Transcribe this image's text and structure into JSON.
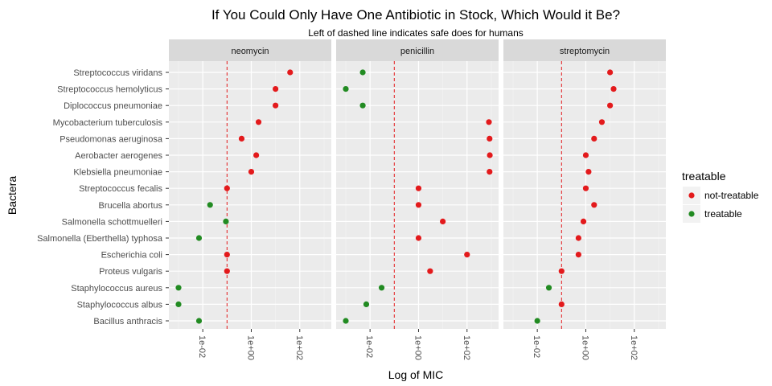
{
  "chart_data": {
    "type": "scatter",
    "title": "If You Could Only Have One Antibiotic in Stock, Which Would it Be?",
    "subtitle": "Left of dashed line indicates safe does for humans",
    "xlabel": "Log of MIC",
    "ylabel": "Bactera",
    "x_scale": "log10",
    "xlim": [
      0.0004,
      2000
    ],
    "x_ticks": [
      0.01,
      1,
      100
    ],
    "x_tick_labels": [
      "1e-02",
      "1e+00",
      "1e+02"
    ],
    "threshold": 0.1,
    "grid": true,
    "legend": {
      "title": "treatable",
      "position": "right",
      "entries": [
        {
          "label": "not-treatable",
          "color": "#e31a1c"
        },
        {
          "label": "treatable",
          "color": "#228b22"
        }
      ]
    },
    "colors": {
      "not-treatable": "#e31a1c",
      "treatable": "#228b22",
      "threshold_line": "#e31a1c"
    },
    "categories": [
      "Streptococcus viridans",
      "Streptococcus hemolyticus",
      "Diplococcus pneumoniae",
      "Mycobacterium tuberculosis",
      "Pseudomonas aeruginosa",
      "Aerobacter aerogenes",
      "Klebsiella pneumoniae",
      "Streptococcus fecalis",
      "Brucella abortus",
      "Salmonella schottmuelleri",
      "Salmonella (Eberthella) typhosa",
      "Escherichia coli",
      "Proteus vulgaris",
      "Staphylococcus aureus",
      "Staphylococcus albus",
      "Bacillus anthracis"
    ],
    "panels": [
      {
        "name": "neomycin",
        "points": [
          {
            "x": 40,
            "treatable": "not-treatable"
          },
          {
            "x": 10,
            "treatable": "not-treatable"
          },
          {
            "x": 10,
            "treatable": "not-treatable"
          },
          {
            "x": 2,
            "treatable": "not-treatable"
          },
          {
            "x": 0.4,
            "treatable": "not-treatable"
          },
          {
            "x": 1.6,
            "treatable": "not-treatable"
          },
          {
            "x": 1,
            "treatable": "not-treatable"
          },
          {
            "x": 0.1,
            "treatable": "not-treatable"
          },
          {
            "x": 0.02,
            "treatable": "treatable"
          },
          {
            "x": 0.09,
            "treatable": "treatable"
          },
          {
            "x": 0.007,
            "treatable": "treatable"
          },
          {
            "x": 0.1,
            "treatable": "not-treatable"
          },
          {
            "x": 0.1,
            "treatable": "not-treatable"
          },
          {
            "x": 0.001,
            "treatable": "treatable"
          },
          {
            "x": 0.001,
            "treatable": "treatable"
          },
          {
            "x": 0.007,
            "treatable": "treatable"
          }
        ]
      },
      {
        "name": "penicillin",
        "points": [
          {
            "x": 0.005,
            "treatable": "treatable"
          },
          {
            "x": 0.001,
            "treatable": "treatable"
          },
          {
            "x": 0.005,
            "treatable": "treatable"
          },
          {
            "x": 800,
            "treatable": "not-treatable"
          },
          {
            "x": 850,
            "treatable": "not-treatable"
          },
          {
            "x": 870,
            "treatable": "not-treatable"
          },
          {
            "x": 850,
            "treatable": "not-treatable"
          },
          {
            "x": 1,
            "treatable": "not-treatable"
          },
          {
            "x": 1,
            "treatable": "not-treatable"
          },
          {
            "x": 10,
            "treatable": "not-treatable"
          },
          {
            "x": 1,
            "treatable": "not-treatable"
          },
          {
            "x": 100,
            "treatable": "not-treatable"
          },
          {
            "x": 3,
            "treatable": "not-treatable"
          },
          {
            "x": 0.03,
            "treatable": "treatable"
          },
          {
            "x": 0.007,
            "treatable": "treatable"
          },
          {
            "x": 0.001,
            "treatable": "treatable"
          }
        ]
      },
      {
        "name": "streptomycin",
        "points": [
          {
            "x": 10,
            "treatable": "not-treatable"
          },
          {
            "x": 14,
            "treatable": "not-treatable"
          },
          {
            "x": 10,
            "treatable": "not-treatable"
          },
          {
            "x": 4.6,
            "treatable": "not-treatable"
          },
          {
            "x": 2.2,
            "treatable": "not-treatable"
          },
          {
            "x": 1,
            "treatable": "not-treatable"
          },
          {
            "x": 1.3,
            "treatable": "not-treatable"
          },
          {
            "x": 1,
            "treatable": "not-treatable"
          },
          {
            "x": 2.2,
            "treatable": "not-treatable"
          },
          {
            "x": 0.8,
            "treatable": "not-treatable"
          },
          {
            "x": 0.5,
            "treatable": "not-treatable"
          },
          {
            "x": 0.5,
            "treatable": "not-treatable"
          },
          {
            "x": 0.1,
            "treatable": "not-treatable"
          },
          {
            "x": 0.03,
            "treatable": "treatable"
          },
          {
            "x": 0.1,
            "treatable": "not-treatable"
          },
          {
            "x": 0.01,
            "treatable": "treatable"
          }
        ]
      }
    ]
  }
}
